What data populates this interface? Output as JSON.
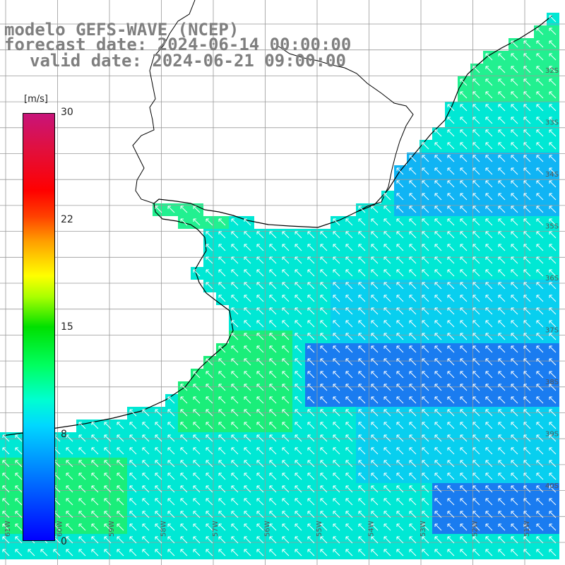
{
  "title": {
    "line1": "modelo GEFS-WAVE (NCEP)",
    "line2": "forecast date: 2024-06-14 00:00:00",
    "line3": "valid date: 2024-06-21 09:00:00"
  },
  "colorbar": {
    "unit": "[m/s]",
    "ticks": [
      "30",
      "22",
      "15",
      "8",
      "0"
    ],
    "tick_values": [
      30,
      22,
      15,
      8,
      0
    ],
    "range": [
      0,
      30
    ],
    "colors": [
      "#0000ff",
      "#0070ff",
      "#00d8ff",
      "#00ffd0",
      "#00ff60",
      "#00e000",
      "#a8ff00",
      "#ffff00",
      "#ffa000",
      "#ff4000",
      "#ff0000",
      "#e01040",
      "#c8147a"
    ]
  },
  "lat_labels": [
    "32S",
    "33S",
    "34S",
    "35S",
    "36S",
    "37S",
    "38S",
    "39S",
    "40S"
  ],
  "lon_labels": [
    "61W",
    "60W",
    "59W",
    "58W",
    "57W",
    "56W",
    "55W",
    "54W",
    "53W",
    "52W",
    "51W"
  ],
  "colors": {
    "land": "#ffffff",
    "grid": "#999999",
    "coast": "#000000",
    "arrow": "#ffffff",
    "title": "#7f7f7f"
  }
}
